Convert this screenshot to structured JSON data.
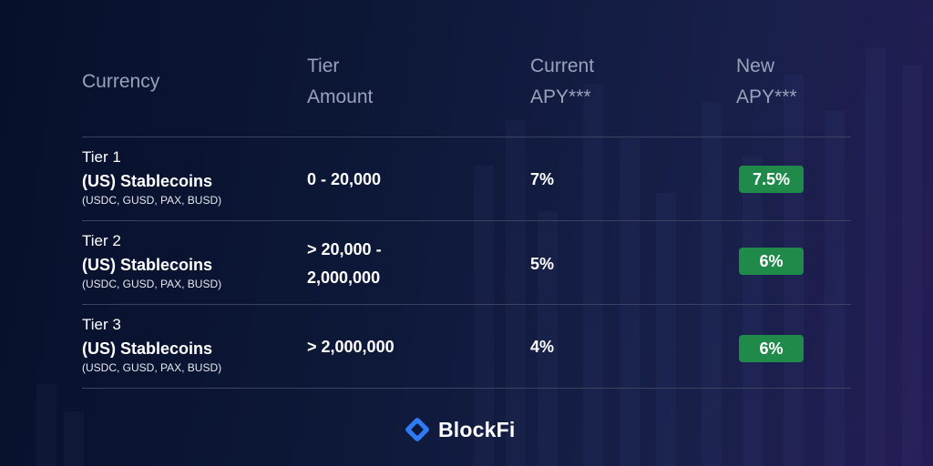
{
  "header": {
    "currency": "Currency",
    "tier_amount": [
      "Tier",
      "Amount"
    ],
    "current_apy": [
      "Current",
      "APY***"
    ],
    "new_apy": [
      "New",
      "APY***"
    ]
  },
  "rows": [
    {
      "tier": "Tier 1",
      "asset": "(US) Stablecoins",
      "coins": "(USDC, GUSD, PAX, BUSD)",
      "amount": [
        "0 - 20,000"
      ],
      "current_apy": "7%",
      "new_apy": "7.5%"
    },
    {
      "tier": "Tier 2",
      "asset": "(US) Stablecoins",
      "coins": "(USDC, GUSD, PAX, BUSD)",
      "amount": [
        "> 20,000 -",
        "2,000,000"
      ],
      "current_apy": "5%",
      "new_apy": "6%"
    },
    {
      "tier": "Tier 3",
      "asset": "(US) Stablecoins",
      "coins": "(USDC, GUSD, PAX, BUSD)",
      "amount": [
        "> 2,000,000"
      ],
      "current_apy": "4%",
      "new_apy": "6%"
    }
  ],
  "brand": {
    "name": "BlockFi",
    "logo_icon": "blockfi-diamond-icon",
    "logo_color": "#2f7bf5"
  },
  "colors": {
    "badge_green": "#1f8a4a",
    "header_text": "#9aa2ba",
    "background": "#0d1838"
  }
}
